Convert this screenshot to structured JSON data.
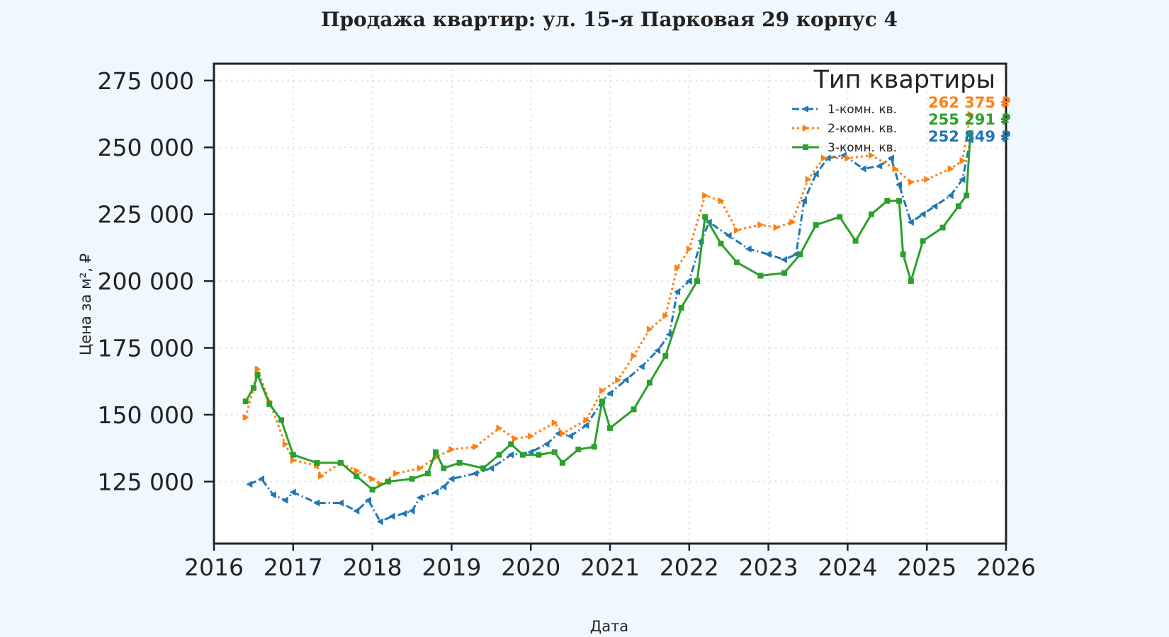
{
  "chart_data": {
    "type": "line",
    "title": "Продажа квартир: ул. 15-я Парковая 29 корпус 4",
    "xlabel": "Дата",
    "ylabel": "Цена за м², ₽",
    "xlim": [
      2016,
      2026
    ],
    "ylim": [
      101800,
      281300
    ],
    "x_ticks": [
      "2016",
      "2017",
      "2018",
      "2019",
      "2020",
      "2021",
      "2022",
      "2023",
      "2024",
      "2025",
      "2026"
    ],
    "y_ticks": [
      "125 000",
      "150 000",
      "175 000",
      "200 000",
      "225 000",
      "250 000",
      "275 000"
    ],
    "grid": true,
    "legend": {
      "title": "Тип квартиры",
      "placement": "top-right"
    },
    "series": [
      {
        "name": "1-комн. кв.",
        "color": "#1f77b4",
        "marker": "triangle-left",
        "linestyle": "dash-dot",
        "end_label": "252 849 ₽",
        "x": [
          2016.45,
          2016.6,
          2016.75,
          2016.9,
          2017.0,
          2017.3,
          2017.6,
          2017.8,
          2017.95,
          2018.1,
          2018.25,
          2018.4,
          2018.5,
          2018.6,
          2018.8,
          2018.9,
          2019.0,
          2019.3,
          2019.5,
          2019.75,
          2020.0,
          2020.2,
          2020.35,
          2020.5,
          2020.7,
          2020.9,
          2021.0,
          2021.2,
          2021.4,
          2021.6,
          2021.75,
          2021.85,
          2022.0,
          2022.15,
          2022.25,
          2022.5,
          2022.75,
          2023.0,
          2023.2,
          2023.35,
          2023.45,
          2023.6,
          2023.75,
          2023.95,
          2024.2,
          2024.4,
          2024.55,
          2024.65,
          2024.8,
          2024.95,
          2025.1,
          2025.3,
          2025.45,
          2025.55
        ],
        "y": [
          124000,
          126000,
          120000,
          118000,
          121000,
          117000,
          117000,
          114000,
          118000,
          110000,
          112000,
          113000,
          114000,
          119000,
          121000,
          123000,
          126000,
          128000,
          130000,
          135000,
          136000,
          139000,
          143000,
          142000,
          146000,
          155000,
          158000,
          163000,
          168000,
          174000,
          180000,
          196000,
          200000,
          215000,
          222000,
          217000,
          212000,
          210000,
          208000,
          210000,
          230000,
          240000,
          246000,
          247000,
          242000,
          243000,
          246000,
          236000,
          222000,
          225000,
          228000,
          232000,
          238000,
          252849
        ]
      },
      {
        "name": "2-комн. кв.",
        "color": "#ff7f0e",
        "marker": "triangle-right",
        "linestyle": "dotted",
        "end_label": "262 375 ₽",
        "x": [
          2016.4,
          2016.5,
          2016.55,
          2016.7,
          2016.9,
          2017.0,
          2017.3,
          2017.35,
          2017.6,
          2017.8,
          2018.0,
          2018.1,
          2018.3,
          2018.6,
          2018.8,
          2019.0,
          2019.3,
          2019.6,
          2019.8,
          2020.0,
          2020.3,
          2020.4,
          2020.7,
          2020.9,
          2021.1,
          2021.3,
          2021.5,
          2021.7,
          2021.85,
          2022.0,
          2022.2,
          2022.4,
          2022.6,
          2022.9,
          2023.1,
          2023.3,
          2023.5,
          2023.7,
          2024.0,
          2024.3,
          2024.6,
          2024.8,
          2025.0,
          2025.3,
          2025.45,
          2025.55
        ],
        "y": [
          149000,
          160000,
          167000,
          155000,
          139000,
          133000,
          131000,
          127000,
          132000,
          129000,
          126000,
          124000,
          128000,
          130000,
          134000,
          137000,
          138000,
          145000,
          141000,
          142000,
          147000,
          143000,
          148000,
          159000,
          163000,
          172000,
          182000,
          187000,
          205000,
          212000,
          232000,
          230000,
          219000,
          221000,
          220000,
          222000,
          238000,
          246000,
          246000,
          247000,
          242000,
          237000,
          238000,
          242000,
          245000,
          262375
        ]
      },
      {
        "name": "3-комн. кв.",
        "color": "#2ca02c",
        "marker": "square",
        "linestyle": "solid",
        "end_label": "255 291 ₽",
        "x": [
          2016.4,
          2016.5,
          2016.55,
          2016.7,
          2016.85,
          2017.0,
          2017.3,
          2017.6,
          2017.8,
          2018.0,
          2018.2,
          2018.5,
          2018.7,
          2018.8,
          2018.9,
          2019.1,
          2019.4,
          2019.6,
          2019.75,
          2019.9,
          2020.1,
          2020.3,
          2020.4,
          2020.6,
          2020.8,
          2020.9,
          2021.0,
          2021.3,
          2021.5,
          2021.7,
          2021.9,
          2022.1,
          2022.2,
          2022.4,
          2022.6,
          2022.9,
          2023.2,
          2023.4,
          2023.6,
          2023.9,
          2024.1,
          2024.3,
          2024.5,
          2024.65,
          2024.7,
          2024.8,
          2024.95,
          2025.2,
          2025.4,
          2025.5,
          2025.55
        ],
        "y": [
          155000,
          160000,
          165000,
          154000,
          148000,
          135000,
          132000,
          132000,
          127000,
          122000,
          125000,
          126000,
          128000,
          136000,
          130000,
          132000,
          130000,
          135000,
          139000,
          135000,
          135000,
          136000,
          132000,
          137000,
          138000,
          155000,
          145000,
          152000,
          162000,
          172000,
          190000,
          200000,
          224000,
          214000,
          207000,
          202000,
          203000,
          210000,
          221000,
          224000,
          215000,
          225000,
          230000,
          230000,
          210000,
          200000,
          215000,
          220000,
          228000,
          232000,
          255291
        ]
      }
    ]
  }
}
